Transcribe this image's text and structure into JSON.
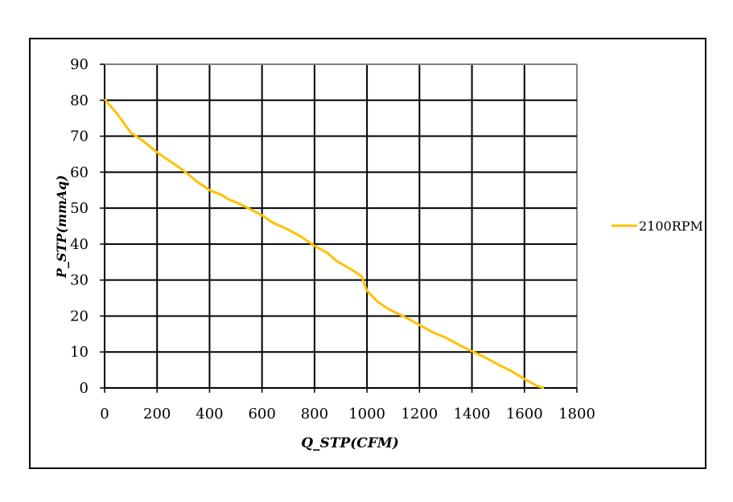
{
  "chart_data": {
    "type": "line",
    "xlabel": "Q_STP(CFM)",
    "ylabel": "P_STP(mmAq)",
    "xlim": [
      0,
      1800
    ],
    "ylim": [
      0,
      90
    ],
    "x_ticks": [
      0,
      200,
      400,
      600,
      800,
      1000,
      1200,
      1400,
      1600,
      1800
    ],
    "y_ticks": [
      0,
      10,
      20,
      30,
      40,
      50,
      60,
      70,
      80,
      90
    ],
    "grid": true,
    "legend_position": "right",
    "series": [
      {
        "name": "2100RPM",
        "color": "#FFC000",
        "points": [
          [
            0,
            80.3
          ],
          [
            50,
            76
          ],
          [
            100,
            71
          ],
          [
            150,
            68.5
          ],
          [
            200,
            65.5
          ],
          [
            250,
            63
          ],
          [
            300,
            60.5
          ],
          [
            350,
            57.5
          ],
          [
            400,
            55
          ],
          [
            450,
            53.5
          ],
          [
            470,
            52.5
          ],
          [
            520,
            51
          ],
          [
            560,
            49.5
          ],
          [
            600,
            48
          ],
          [
            640,
            46
          ],
          [
            700,
            44
          ],
          [
            750,
            42
          ],
          [
            800,
            39.5
          ],
          [
            850,
            37.5
          ],
          [
            880,
            35.5
          ],
          [
            950,
            32.5
          ],
          [
            980,
            31
          ],
          [
            1000,
            27
          ],
          [
            1040,
            24
          ],
          [
            1080,
            22
          ],
          [
            1150,
            19.5
          ],
          [
            1200,
            17.5
          ],
          [
            1250,
            15.5
          ],
          [
            1300,
            14
          ],
          [
            1350,
            12
          ],
          [
            1400,
            10.2
          ],
          [
            1450,
            8.5
          ],
          [
            1500,
            6.5
          ],
          [
            1550,
            4.7
          ],
          [
            1600,
            2.5
          ],
          [
            1650,
            0.5
          ],
          [
            1675,
            0
          ]
        ]
      }
    ]
  }
}
